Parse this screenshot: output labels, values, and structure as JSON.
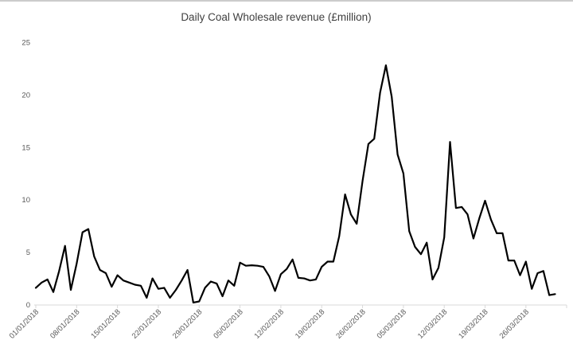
{
  "page": {
    "background": "#ffffff",
    "top_border_color": "#cccccc"
  },
  "chart_data": {
    "type": "line",
    "title": "Daily Coal Wholesale revenue (£million)",
    "title_color": "#404040",
    "xlabel": "",
    "ylabel": "",
    "x_tick_labels": [
      "01/01/2018",
      "08/01/2018",
      "15/01/2018",
      "22/01/2018",
      "29/01/2018",
      "05/02/2018",
      "12/02/2018",
      "19/02/2018",
      "26/02/2018",
      "05/03/2018",
      "12/03/2018",
      "19/03/2018",
      "26/03/2018"
    ],
    "x_tick_interval_days": 7,
    "ylim": [
      0,
      25
    ],
    "yticks": [
      0,
      5,
      10,
      15,
      20,
      25
    ],
    "grid": false,
    "legend": "none",
    "axis_color": "#d9d9d9",
    "tick_label_color": "#595959",
    "series": [
      {
        "name": "Daily Coal Wholesale revenue",
        "color": "#000000",
        "values": [
          1.6,
          2.1,
          2.4,
          1.2,
          3.2,
          5.6,
          1.4,
          3.9,
          6.9,
          7.2,
          4.6,
          3.3,
          3.0,
          1.7,
          2.8,
          2.3,
          2.1,
          1.9,
          1.8,
          0.65,
          2.5,
          1.5,
          1.6,
          0.65,
          1.4,
          2.3,
          3.3,
          0.2,
          0.3,
          1.6,
          2.2,
          2.0,
          0.8,
          2.3,
          1.8,
          4.0,
          3.7,
          3.75,
          3.7,
          3.6,
          2.7,
          1.3,
          2.9,
          3.4,
          4.3,
          2.55,
          2.5,
          2.3,
          2.4,
          3.6,
          4.1,
          4.1,
          6.5,
          10.5,
          8.6,
          7.7,
          11.8,
          15.3,
          15.8,
          20.2,
          22.8,
          19.8,
          14.3,
          12.5,
          7.0,
          5.5,
          4.8,
          5.9,
          2.4,
          3.5,
          6.4,
          15.5,
          9.2,
          9.3,
          8.6,
          6.3,
          8.2,
          9.9,
          8.1,
          6.8,
          6.8,
          4.2,
          4.2,
          2.8,
          4.1,
          1.5,
          3.0,
          3.2,
          0.9,
          1.0
        ]
      }
    ]
  }
}
